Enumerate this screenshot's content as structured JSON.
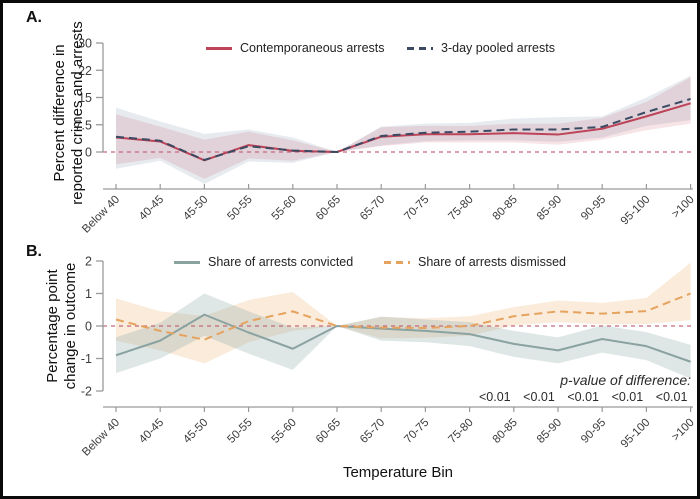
{
  "figure": {
    "xlabel": "Temperature Bin",
    "panels": [
      {
        "label": "A.",
        "ylabel": [
          "Percent difference in",
          "reported crimes and arrests"
        ]
      },
      {
        "label": "B.",
        "ylabel": [
          "Percentage point",
          "change in outcome"
        ]
      }
    ],
    "zero_line_color": "#c4687b",
    "axis_color": "#9a9a9a",
    "tick_label_color": "#3c3c3c"
  },
  "chart_data": [
    {
      "type": "line",
      "panel": "A",
      "ylabel": "Percent difference in reported crimes and arrests",
      "xlabel": "Temperature Bin",
      "ylim": [
        -10,
        30
      ],
      "grid": false,
      "legend_position": "top",
      "zero_line": true,
      "yticks": [
        {
          "label": "0",
          "value": 0
        },
        {
          "label": "7.5",
          "value": 7.5
        },
        {
          "label": "15",
          "value": 15
        },
        {
          "label": "22",
          "value": 22.5
        },
        {
          "label": "30",
          "value": 30
        }
      ],
      "categories": [
        "Below 40",
        "40-45",
        "45-50",
        "50-55",
        "55-60",
        "60-65",
        "65-70",
        "70-75",
        "75-80",
        "80-85",
        "85-90",
        "90-95",
        "95-100",
        ">100"
      ],
      "series": [
        {
          "name": "Contemporaneous arrests",
          "line_style": "solid",
          "color": "#bc4358",
          "band_color": "rgba(188,67,88,0.14)",
          "values": [
            4.0,
            2.9,
            -2.3,
            1.9,
            0.3,
            0,
            4.2,
            4.9,
            4.9,
            5.2,
            4.8,
            6.4,
            9.8,
            13.4
          ],
          "band_lower": [
            -3.4,
            -1.6,
            -7.4,
            -1.8,
            -2.4,
            0,
            1.6,
            2.6,
            2.6,
            2.6,
            2.0,
            3.4,
            6.0,
            7.8
          ],
          "band_upper": [
            10.4,
            7.0,
            3.4,
            5.6,
            3.2,
            0,
            6.8,
            7.2,
            7.2,
            7.8,
            7.8,
            9.4,
            13.8,
            20.6
          ]
        },
        {
          "name": "3-day pooled arrests",
          "line_style": "dashed",
          "color": "#3a4a63",
          "band_color": "rgba(108,130,158,0.16)",
          "values": [
            4.2,
            3.1,
            -2.2,
            1.6,
            0.4,
            0,
            4.4,
            5.3,
            5.6,
            6.2,
            6.2,
            6.9,
            11.0,
            14.6
          ],
          "band_lower": [
            -4.6,
            -2.4,
            -8.8,
            -2.6,
            -3.0,
            0,
            1.8,
            3.0,
            3.2,
            3.2,
            2.8,
            4.0,
            7.2,
            8.8
          ],
          "band_upper": [
            12.2,
            8.4,
            5.0,
            6.2,
            4.0,
            0,
            7.0,
            7.8,
            8.0,
            9.2,
            9.6,
            9.8,
            15.0,
            21.0
          ]
        }
      ]
    },
    {
      "type": "line",
      "panel": "B",
      "ylabel": "Percentage point change in outcome",
      "xlabel": "Temperature Bin",
      "ylim": [
        -2.5,
        2.3
      ],
      "grid": false,
      "legend_position": "top",
      "zero_line": true,
      "yticks": [
        {
          "label": "-2",
          "value": -2
        },
        {
          "label": "-1",
          "value": -1
        },
        {
          "label": "0",
          "value": 0
        },
        {
          "label": "1",
          "value": 1
        },
        {
          "label": "2",
          "value": 2
        }
      ],
      "categories": [
        "Below 40",
        "40-45",
        "45-50",
        "50-55",
        "55-60",
        "60-65",
        "65-70",
        "70-75",
        "75-80",
        "80-85",
        "85-90",
        "90-95",
        "95-100",
        ">100"
      ],
      "series": [
        {
          "name": "Share of arrests convicted",
          "line_style": "solid",
          "color": "#8aa3a1",
          "band_color": "rgba(138,168,164,0.28)",
          "values": [
            -0.9,
            -0.45,
            0.35,
            -0.2,
            -0.7,
            0,
            -0.08,
            -0.15,
            -0.25,
            -0.55,
            -0.75,
            -0.4,
            -0.62,
            -1.1
          ],
          "band_lower": [
            -1.45,
            -1.0,
            -0.3,
            -0.85,
            -1.35,
            0,
            -0.45,
            -0.5,
            -0.62,
            -0.95,
            -1.15,
            -0.82,
            -1.05,
            -1.62
          ],
          "band_upper": [
            -0.35,
            0.1,
            1.0,
            0.45,
            -0.05,
            0,
            0.29,
            0.2,
            0.12,
            -0.15,
            -0.35,
            0.02,
            -0.19,
            -0.58
          ]
        },
        {
          "name": "Share of arrests dismissed",
          "line_style": "dashed",
          "color": "#e5a35e",
          "band_color": "rgba(235,176,110,0.25)",
          "values": [
            0.2,
            -0.15,
            -0.42,
            0.15,
            0.45,
            0,
            -0.05,
            -0.06,
            0.0,
            0.3,
            0.45,
            0.38,
            0.46,
            1.0
          ],
          "band_lower": [
            -0.45,
            -0.75,
            -1.15,
            -0.5,
            -0.15,
            0,
            -0.38,
            -0.36,
            -0.3,
            0.02,
            0.12,
            0.05,
            0.06,
            0.18
          ],
          "band_upper": [
            0.85,
            0.45,
            0.31,
            0.8,
            1.05,
            0,
            0.28,
            0.24,
            0.3,
            0.58,
            0.78,
            0.71,
            0.86,
            1.95
          ]
        }
      ],
      "p_values": {
        "label": "p-value of difference:",
        "entries": [
          {
            "bin": "80-85",
            "value": "<0.01"
          },
          {
            "bin": "85-90",
            "value": "<0.01"
          },
          {
            "bin": "90-95",
            "value": "<0.01"
          },
          {
            "bin": "95-100",
            "value": "<0.01"
          },
          {
            "bin": ">100",
            "value": "<0.01"
          }
        ]
      }
    }
  ]
}
